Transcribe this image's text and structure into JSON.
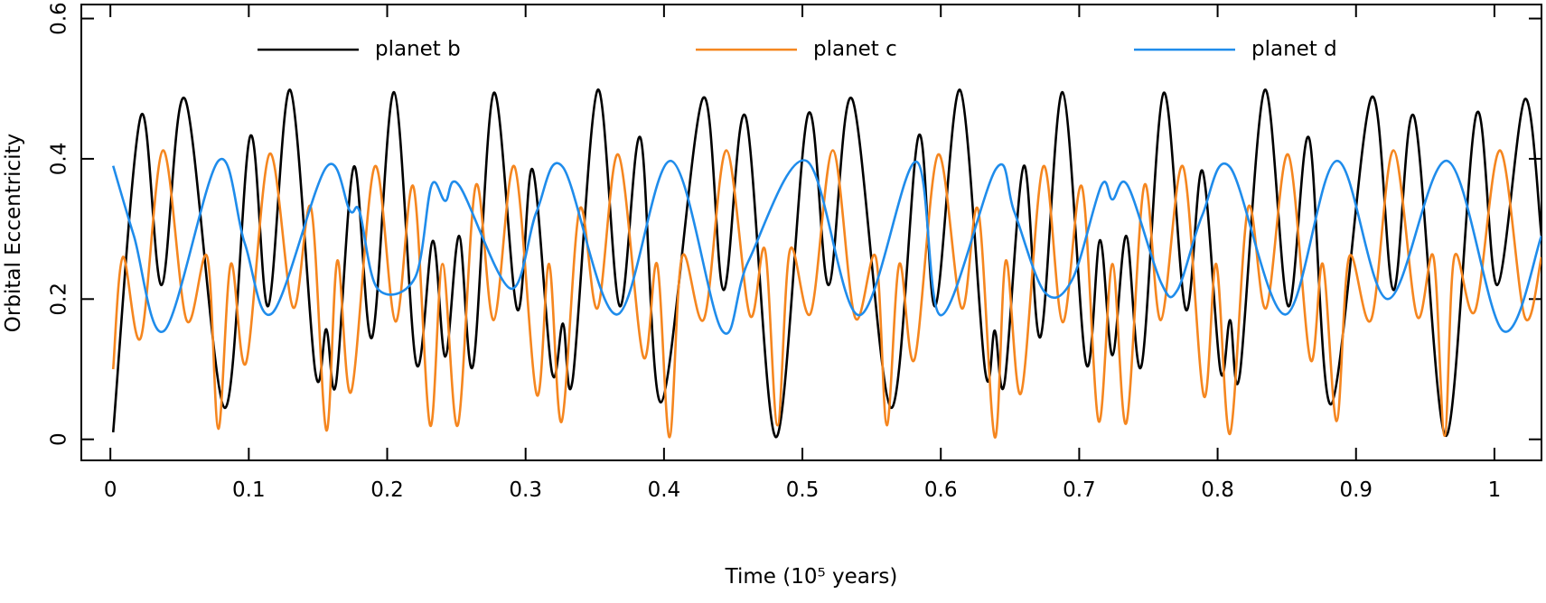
{
  "chart_data": {
    "type": "line",
    "xlabel": "Time (10⁵ years)",
    "ylabel": "Orbital Eccentricity",
    "xlim": [
      -0.021,
      1.034
    ],
    "ylim": [
      -0.03,
      0.62
    ],
    "xticks": [
      0,
      0.1,
      0.2,
      0.3,
      0.4,
      0.5,
      0.6,
      0.7,
      0.8,
      0.9,
      1
    ],
    "yticks": [
      0,
      0.2,
      0.4,
      0.6
    ],
    "legend": "top",
    "series": [
      {
        "name": "planet b",
        "color": "#000000",
        "x": [
          0.002,
          0.022,
          0.037,
          0.054,
          0.0825,
          0.101,
          0.114,
          0.13,
          0.148,
          0.156,
          0.163,
          0.176,
          0.189,
          0.205,
          0.221,
          0.233,
          0.242,
          0.252,
          0.262,
          0.277,
          0.294,
          0.305,
          0.319,
          0.327,
          0.334,
          0.352,
          0.368,
          0.383,
          0.398,
          0.428,
          0.443,
          0.459,
          0.481,
          0.504,
          0.519,
          0.536,
          0.564,
          0.584,
          0.596,
          0.614,
          0.632,
          0.639,
          0.646,
          0.66,
          0.672,
          0.688,
          0.705,
          0.715,
          0.724,
          0.734,
          0.745,
          0.761,
          0.777,
          0.789,
          0.802,
          0.809,
          0.816,
          0.834,
          0.851,
          0.866,
          0.882,
          0.911,
          0.927,
          0.942,
          0.965,
          0.987,
          1.002,
          1.022,
          1.034
        ],
        "values": [
          0.01,
          0.461,
          0.22,
          0.485,
          0.045,
          0.432,
          0.19,
          0.498,
          0.097,
          0.157,
          0.079,
          0.389,
          0.145,
          0.495,
          0.108,
          0.283,
          0.118,
          0.29,
          0.105,
          0.494,
          0.185,
          0.385,
          0.096,
          0.165,
          0.085,
          0.498,
          0.19,
          0.43,
          0.053,
          0.486,
          0.213,
          0.46,
          0.003,
          0.463,
          0.22,
          0.485,
          0.045,
          0.433,
          0.19,
          0.498,
          0.098,
          0.155,
          0.08,
          0.39,
          0.146,
          0.495,
          0.108,
          0.284,
          0.12,
          0.29,
          0.105,
          0.494,
          0.185,
          0.383,
          0.098,
          0.17,
          0.092,
          0.498,
          0.19,
          0.43,
          0.05,
          0.487,
          0.213,
          0.46,
          0.005,
          0.464,
          0.22,
          0.485,
          0.29
        ]
      },
      {
        "name": "planet c",
        "color": "#f5861f",
        "x": [
          0.002,
          0.009,
          0.022,
          0.038,
          0.055,
          0.07,
          0.078,
          0.087,
          0.098,
          0.115,
          0.132,
          0.145,
          0.156,
          0.164,
          0.174,
          0.191,
          0.206,
          0.219,
          0.231,
          0.24,
          0.251,
          0.264,
          0.277,
          0.292,
          0.308,
          0.317,
          0.326,
          0.339,
          0.352,
          0.367,
          0.385,
          0.395,
          0.404,
          0.413,
          0.429,
          0.445,
          0.462,
          0.473,
          0.482,
          0.491,
          0.506,
          0.522,
          0.538,
          0.553,
          0.561,
          0.57,
          0.581,
          0.598,
          0.615,
          0.627,
          0.639,
          0.647,
          0.658,
          0.674,
          0.688,
          0.702,
          0.714,
          0.724,
          0.734,
          0.747,
          0.759,
          0.775,
          0.79,
          0.799,
          0.809,
          0.822,
          0.835,
          0.851,
          0.867,
          0.876,
          0.886,
          0.895,
          0.911,
          0.927,
          0.944,
          0.956,
          0.964,
          0.971,
          0.986,
          1.004,
          1.022,
          1.034
        ],
        "values": [
          0.1,
          0.26,
          0.145,
          0.412,
          0.17,
          0.26,
          0.015,
          0.25,
          0.109,
          0.407,
          0.188,
          0.33,
          0.013,
          0.255,
          0.068,
          0.389,
          0.168,
          0.36,
          0.02,
          0.25,
          0.02,
          0.362,
          0.17,
          0.389,
          0.064,
          0.25,
          0.025,
          0.328,
          0.187,
          0.406,
          0.118,
          0.25,
          0.003,
          0.26,
          0.172,
          0.412,
          0.177,
          0.27,
          0.02,
          0.27,
          0.18,
          0.412,
          0.174,
          0.26,
          0.02,
          0.25,
          0.114,
          0.406,
          0.187,
          0.327,
          0.003,
          0.255,
          0.066,
          0.389,
          0.167,
          0.36,
          0.026,
          0.25,
          0.023,
          0.362,
          0.17,
          0.389,
          0.062,
          0.25,
          0.008,
          0.33,
          0.187,
          0.406,
          0.114,
          0.25,
          0.026,
          0.26,
          0.171,
          0.412,
          0.176,
          0.26,
          0.005,
          0.26,
          0.183,
          0.412,
          0.174,
          0.26
        ]
      },
      {
        "name": "planet d",
        "color": "#1f8ceb",
        "x": [
          0.002,
          0.017,
          0.039,
          0.078,
          0.097,
          0.117,
          0.156,
          0.173,
          0.18,
          0.193,
          0.22,
          0.232,
          0.242,
          0.252,
          0.289,
          0.308,
          0.327,
          0.366,
          0.405,
          0.442,
          0.461,
          0.503,
          0.541,
          0.582,
          0.6,
          0.64,
          0.653,
          0.675,
          0.695,
          0.716,
          0.724,
          0.735,
          0.759,
          0.771,
          0.789,
          0.809,
          0.849,
          0.886,
          0.923,
          0.966,
          1.006,
          1.034
        ],
        "values": [
          0.39,
          0.29,
          0.155,
          0.397,
          0.28,
          0.18,
          0.388,
          0.326,
          0.325,
          0.215,
          0.23,
          0.362,
          0.34,
          0.362,
          0.215,
          0.325,
          0.388,
          0.178,
          0.397,
          0.155,
          0.254,
          0.397,
          0.177,
          0.396,
          0.177,
          0.386,
          0.325,
          0.21,
          0.228,
          0.362,
          0.342,
          0.362,
          0.224,
          0.213,
          0.32,
          0.388,
          0.178,
          0.397,
          0.2,
          0.397,
          0.155,
          0.29
        ]
      }
    ]
  }
}
